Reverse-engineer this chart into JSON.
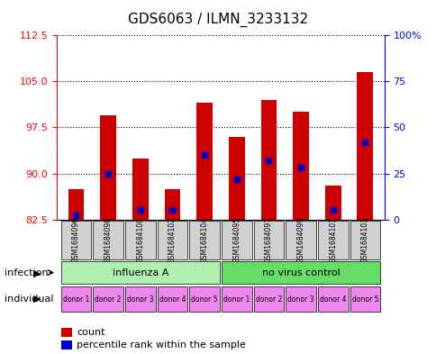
{
  "title": "GDS6063 / ILMN_3233132",
  "samples": [
    "GSM1684096",
    "GSM1684098",
    "GSM1684100",
    "GSM1684102",
    "GSM1684104",
    "GSM1684095",
    "GSM1684097",
    "GSM1684099",
    "GSM1684101",
    "GSM1684103"
  ],
  "red_values": [
    87.5,
    99.5,
    92.5,
    87.5,
    101.5,
    96.0,
    102.0,
    100.0,
    88.0,
    106.5
  ],
  "blue_values": [
    2.5,
    25.0,
    5.0,
    5.0,
    35.0,
    22.0,
    32.0,
    28.0,
    5.0,
    42.0
  ],
  "ylim_left": [
    82.5,
    112.5
  ],
  "ylim_right": [
    0,
    100
  ],
  "yticks_left": [
    82.5,
    90.0,
    97.5,
    105.0,
    112.5
  ],
  "yticks_right": [
    0,
    25,
    50,
    75,
    100
  ],
  "infection_labels": [
    "influenza A",
    "no virus control"
  ],
  "infection_groups": [
    5,
    5
  ],
  "individual_labels": [
    "donor 1",
    "donor 2",
    "donor 3",
    "donor 4",
    "donor 5",
    "donor 1",
    "donor 2",
    "donor 3",
    "donor 4",
    "donor 5"
  ],
  "bar_width": 0.5,
  "bar_color": "#cc0000",
  "blue_color": "#0000cc",
  "bar_base": 82.5,
  "bg_color": "#ffffff",
  "grid_color": "#000000",
  "infection_bg_light": "#b0f0b0",
  "infection_bg_bright": "#66dd66",
  "individual_bg": "#ee88ee",
  "sample_bg": "#d0d0d0"
}
